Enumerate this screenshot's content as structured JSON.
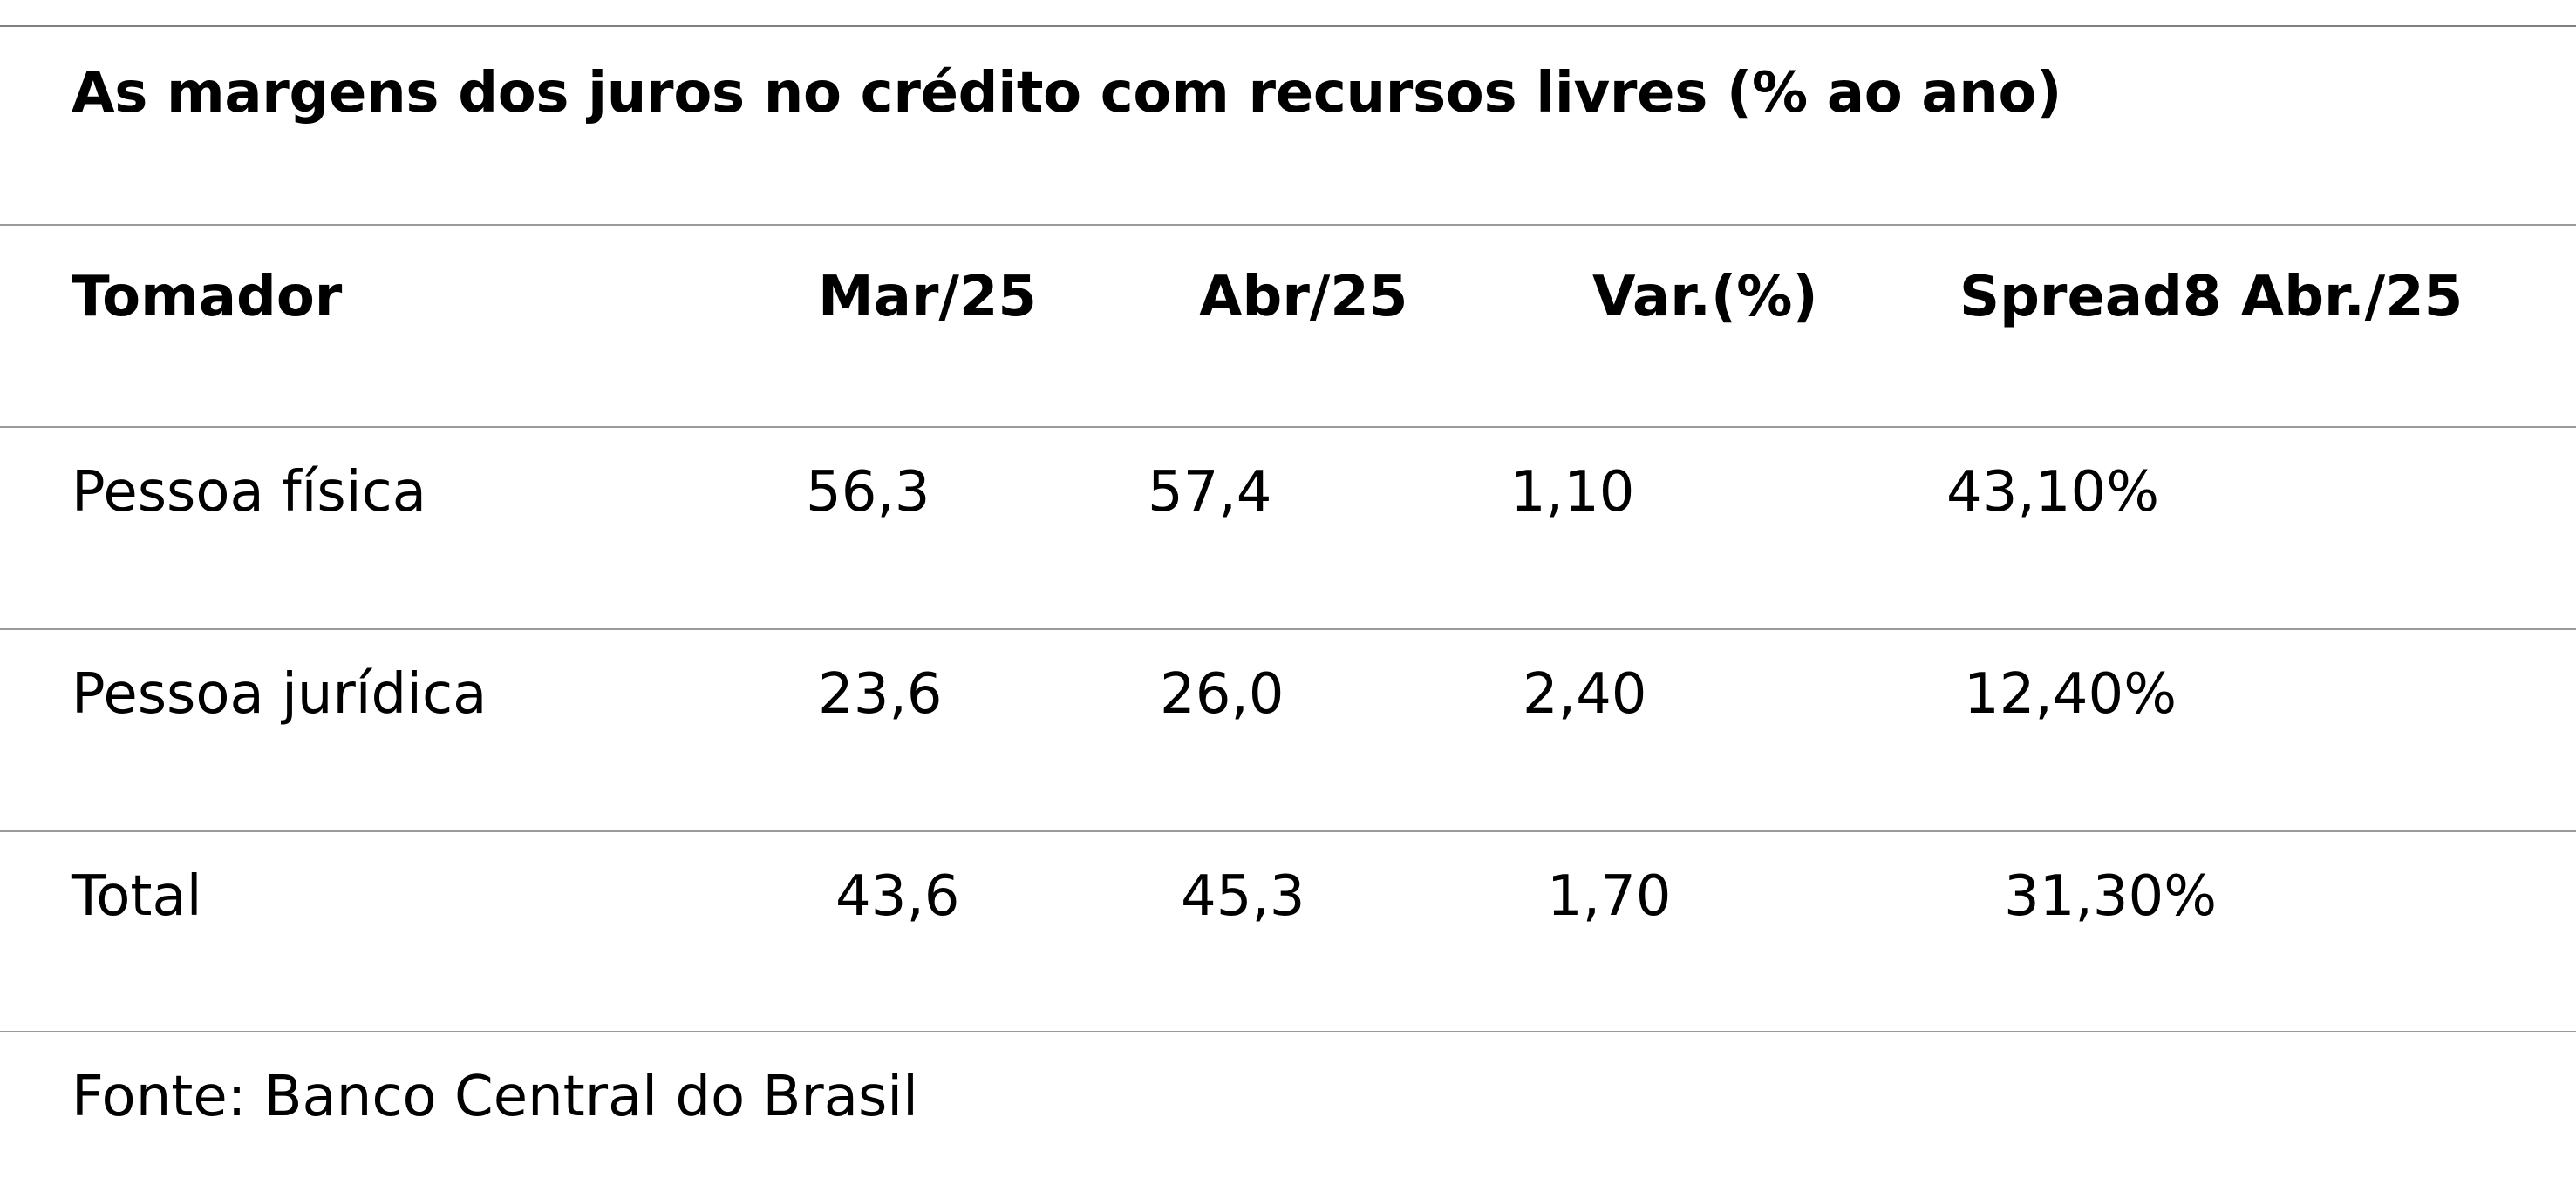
{
  "table": {
    "title": "As margens dos juros no crédito com recursos livres (% ao ano)",
    "headers": [
      "Tomador",
      "Mar/25",
      "Abr/25",
      "Var.(%)",
      "Spread8 Abr./25"
    ],
    "rows": [
      [
        "Pessoa física",
        "56,3",
        "57,4",
        "1,10",
        "43,10%"
      ],
      [
        "Pessoa jurídica",
        "23,6",
        "26,0",
        "2,40",
        "12,40%"
      ],
      [
        "Total",
        "43,6",
        "45,3",
        "1,70",
        "31,30%"
      ]
    ],
    "source": "Fonte: Banco Central do Brasil"
  }
}
